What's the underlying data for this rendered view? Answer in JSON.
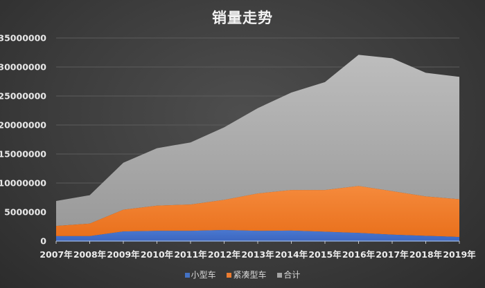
{
  "chart_data": {
    "type": "area",
    "stacked": true,
    "title": "销量走势",
    "xlabel": "",
    "ylabel": "",
    "categories": [
      "2007年",
      "2008年",
      "2009年",
      "2010年",
      "2011年",
      "2012年",
      "2013年",
      "2014年",
      "2015年",
      "2016年",
      "2017年",
      "2018年",
      "2019年"
    ],
    "yticks": [
      "0",
      "5000000",
      "10000000",
      "15000000",
      "20000000",
      "25000000",
      "30000000",
      "35000000"
    ],
    "ylim": [
      0,
      35000000
    ],
    "grid": true,
    "legend_position": "bottom",
    "series": [
      {
        "name": "小型车",
        "color": "#4472c4",
        "values": [
          850000,
          850000,
          1650000,
          1750000,
          1750000,
          1900000,
          1750000,
          1800000,
          1600000,
          1400000,
          1100000,
          900000,
          700000
        ]
      },
      {
        "name": "紧凑型车",
        "color": "#ed7d31",
        "values": [
          1750000,
          2150000,
          3750000,
          4350000,
          4550000,
          5200000,
          6450000,
          7000000,
          7200000,
          8100000,
          7500000,
          6800000,
          6500000
        ]
      },
      {
        "name": "合计",
        "color": "#a5a5a5",
        "values": [
          4300000,
          4900000,
          8100000,
          9900000,
          10700000,
          12500000,
          14700000,
          16800000,
          18600000,
          22600000,
          22900000,
          21300000,
          21100000
        ]
      }
    ],
    "stacked_totals": [
      6900000,
      7900000,
      13500000,
      16000000,
      17000000,
      19600000,
      22900000,
      25600000,
      27400000,
      32100000,
      31500000,
      29000000,
      28300000
    ]
  }
}
